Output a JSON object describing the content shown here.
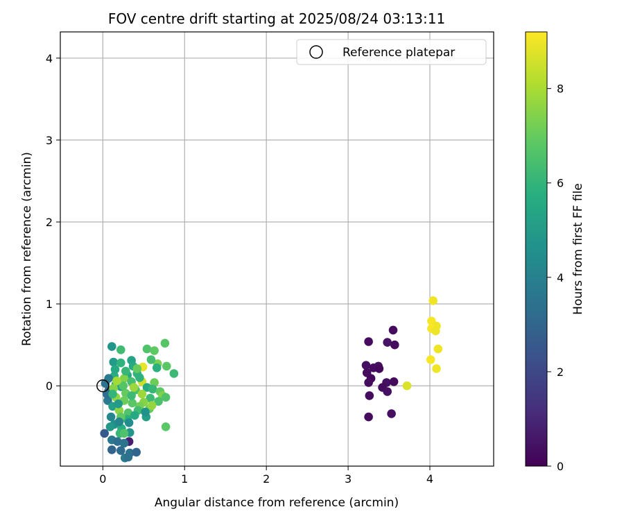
{
  "chart_data": {
    "type": "scatter",
    "title": "FOV centre drift starting at 2025/08/24 03:13:11",
    "xlabel": "Angular distance from reference (arcmin)",
    "ylabel": "Rotation from reference (arcmin)",
    "xlim": [
      -0.52,
      4.78
    ],
    "ylim": [
      -0.98,
      4.32
    ],
    "xticks": [
      0,
      1,
      2,
      3,
      4
    ],
    "yticks": [
      0,
      1,
      2,
      3,
      4
    ],
    "grid": true,
    "legend": {
      "placement": "top-right",
      "entries": [
        "Reference platepar"
      ]
    },
    "reference_point": {
      "x": 0,
      "y": 0,
      "label": "Reference platepar"
    },
    "colorbar": {
      "label": "Hours from first FF file",
      "min": 0,
      "max": 9.2,
      "ticks": [
        0,
        2,
        4,
        6,
        8
      ],
      "colormap": "viridis"
    },
    "series": [
      {
        "points": [
          [
            3.25,
            0.54,
            0.3
          ],
          [
            3.55,
            0.68,
            0.3
          ],
          [
            3.57,
            0.5,
            0.3
          ],
          [
            3.48,
            0.53,
            0.5
          ],
          [
            3.22,
            0.25,
            0.4
          ],
          [
            3.31,
            0.22,
            0.3
          ],
          [
            3.37,
            0.24,
            0.4
          ],
          [
            3.38,
            0.21,
            0.2
          ],
          [
            3.23,
            0.16,
            0.3
          ],
          [
            3.28,
            0.09,
            0.2
          ],
          [
            3.25,
            0.04,
            0.3
          ],
          [
            3.47,
            0.04,
            0.4
          ],
          [
            3.56,
            0.05,
            0.2
          ],
          [
            3.42,
            -0.02,
            0.3
          ],
          [
            3.48,
            -0.07,
            0.4
          ],
          [
            3.26,
            -0.12,
            0.3
          ],
          [
            3.53,
            -0.34,
            0.4
          ],
          [
            3.25,
            -0.38,
            0.3
          ],
          [
            0.32,
            -0.68,
            0.8
          ],
          [
            4.04,
            1.04,
            9.0
          ],
          [
            4.02,
            0.79,
            9.1
          ],
          [
            4.08,
            0.73,
            9.0
          ],
          [
            4.02,
            0.7,
            9.1
          ],
          [
            4.07,
            0.67,
            9.0
          ],
          [
            4.1,
            0.45,
            9.0
          ],
          [
            4.01,
            0.32,
            9.1
          ],
          [
            4.08,
            0.21,
            9.0
          ],
          [
            3.72,
            0.0,
            8.7
          ],
          [
            0.49,
            0.23,
            8.9
          ],
          [
            0.48,
            0.05,
            8.5
          ],
          [
            0.11,
            0.48,
            4.8
          ],
          [
            0.22,
            0.44,
            6.3
          ],
          [
            0.13,
            0.29,
            5.0
          ],
          [
            0.35,
            0.31,
            5.3
          ],
          [
            0.54,
            0.45,
            6.6
          ],
          [
            0.76,
            0.52,
            6.7
          ],
          [
            0.63,
            0.43,
            6.9
          ],
          [
            0.78,
            0.24,
            6.8
          ],
          [
            0.67,
            0.27,
            7.3
          ],
          [
            0.59,
            0.32,
            6.4
          ],
          [
            0.37,
            0.24,
            5.6
          ],
          [
            0.22,
            0.28,
            5.9
          ],
          [
            0.42,
            0.15,
            6.0
          ],
          [
            0.87,
            0.15,
            6.2
          ],
          [
            0.63,
            0.04,
            7.1
          ],
          [
            0.3,
            0.13,
            5.6
          ],
          [
            0.14,
            0.12,
            5.7
          ],
          [
            0.26,
            0.09,
            7.4
          ],
          [
            0.07,
            0.09,
            3.8
          ],
          [
            0.35,
            0.05,
            6.4
          ],
          [
            0.16,
            0.02,
            5.2
          ],
          [
            0.03,
            0.03,
            3.5
          ],
          [
            0.07,
            -0.06,
            3.1
          ],
          [
            0.22,
            -0.01,
            5.3
          ],
          [
            0.28,
            -0.09,
            7.0
          ],
          [
            0.13,
            -0.03,
            7.5
          ],
          [
            0.4,
            -0.05,
            6.5
          ],
          [
            0.54,
            -0.02,
            5.6
          ],
          [
            0.61,
            -0.04,
            6.1
          ],
          [
            0.7,
            -0.07,
            6.9
          ],
          [
            0.73,
            -0.12,
            7.4
          ],
          [
            0.77,
            -0.14,
            6.6
          ],
          [
            0.68,
            -0.19,
            6.5
          ],
          [
            0.58,
            -0.15,
            6.2
          ],
          [
            0.5,
            -0.2,
            7.5
          ],
          [
            0.45,
            -0.25,
            7.2
          ],
          [
            0.36,
            -0.21,
            6.8
          ],
          [
            0.26,
            -0.18,
            7.1
          ],
          [
            0.16,
            -0.14,
            7.6
          ],
          [
            0.06,
            -0.18,
            3.7
          ],
          [
            0.12,
            -0.25,
            5.2
          ],
          [
            0.2,
            -0.3,
            7.6
          ],
          [
            0.31,
            -0.33,
            6.6
          ],
          [
            0.43,
            -0.3,
            6.3
          ],
          [
            0.53,
            -0.38,
            5.2
          ],
          [
            0.57,
            -0.28,
            7.0
          ],
          [
            0.39,
            -0.36,
            5.5
          ],
          [
            0.3,
            -0.41,
            5.8
          ],
          [
            0.22,
            -0.38,
            6.9
          ],
          [
            0.1,
            -0.38,
            4.2
          ],
          [
            0.14,
            -0.47,
            4.6
          ],
          [
            0.23,
            -0.52,
            5.7
          ],
          [
            0.33,
            -0.57,
            4.8
          ],
          [
            0.21,
            -0.58,
            6.1
          ],
          [
            0.26,
            -0.58,
            6.6
          ],
          [
            0.02,
            -0.58,
            2.6
          ],
          [
            0.11,
            -0.66,
            3.7
          ],
          [
            0.18,
            -0.68,
            3.3
          ],
          [
            0.26,
            -0.7,
            3.5
          ],
          [
            0.11,
            -0.78,
            3.0
          ],
          [
            0.22,
            -0.79,
            3.2
          ],
          [
            0.33,
            -0.82,
            3.4
          ],
          [
            0.27,
            -0.88,
            3.8
          ],
          [
            0.31,
            -0.87,
            3.4
          ],
          [
            0.41,
            -0.81,
            3.0
          ],
          [
            0.77,
            -0.5,
            6.8
          ],
          [
            0.15,
            0.2,
            5.5
          ],
          [
            0.45,
            0.1,
            5.9
          ],
          [
            0.25,
            0.0,
            6.7
          ],
          [
            0.05,
            -0.1,
            3.3
          ],
          [
            0.35,
            -0.12,
            6.2
          ],
          [
            0.19,
            -0.22,
            5.0
          ],
          [
            0.48,
            -0.1,
            7.8
          ],
          [
            0.42,
            0.21,
            7.0
          ],
          [
            0.12,
            -0.1,
            6.0
          ],
          [
            0.32,
            -0.45,
            4.4
          ],
          [
            0.6,
            -0.24,
            7.7
          ],
          [
            0.28,
            0.18,
            6.1
          ],
          [
            0.38,
            -0.02,
            7.8
          ],
          [
            0.17,
            0.06,
            7.9
          ],
          [
            0.09,
            -0.5,
            4.9
          ],
          [
            0.52,
            -0.32,
            4.6
          ],
          [
            0.2,
            -0.44,
            4.1
          ],
          [
            0.66,
            0.22,
            5.8
          ]
        ]
      }
    ]
  }
}
